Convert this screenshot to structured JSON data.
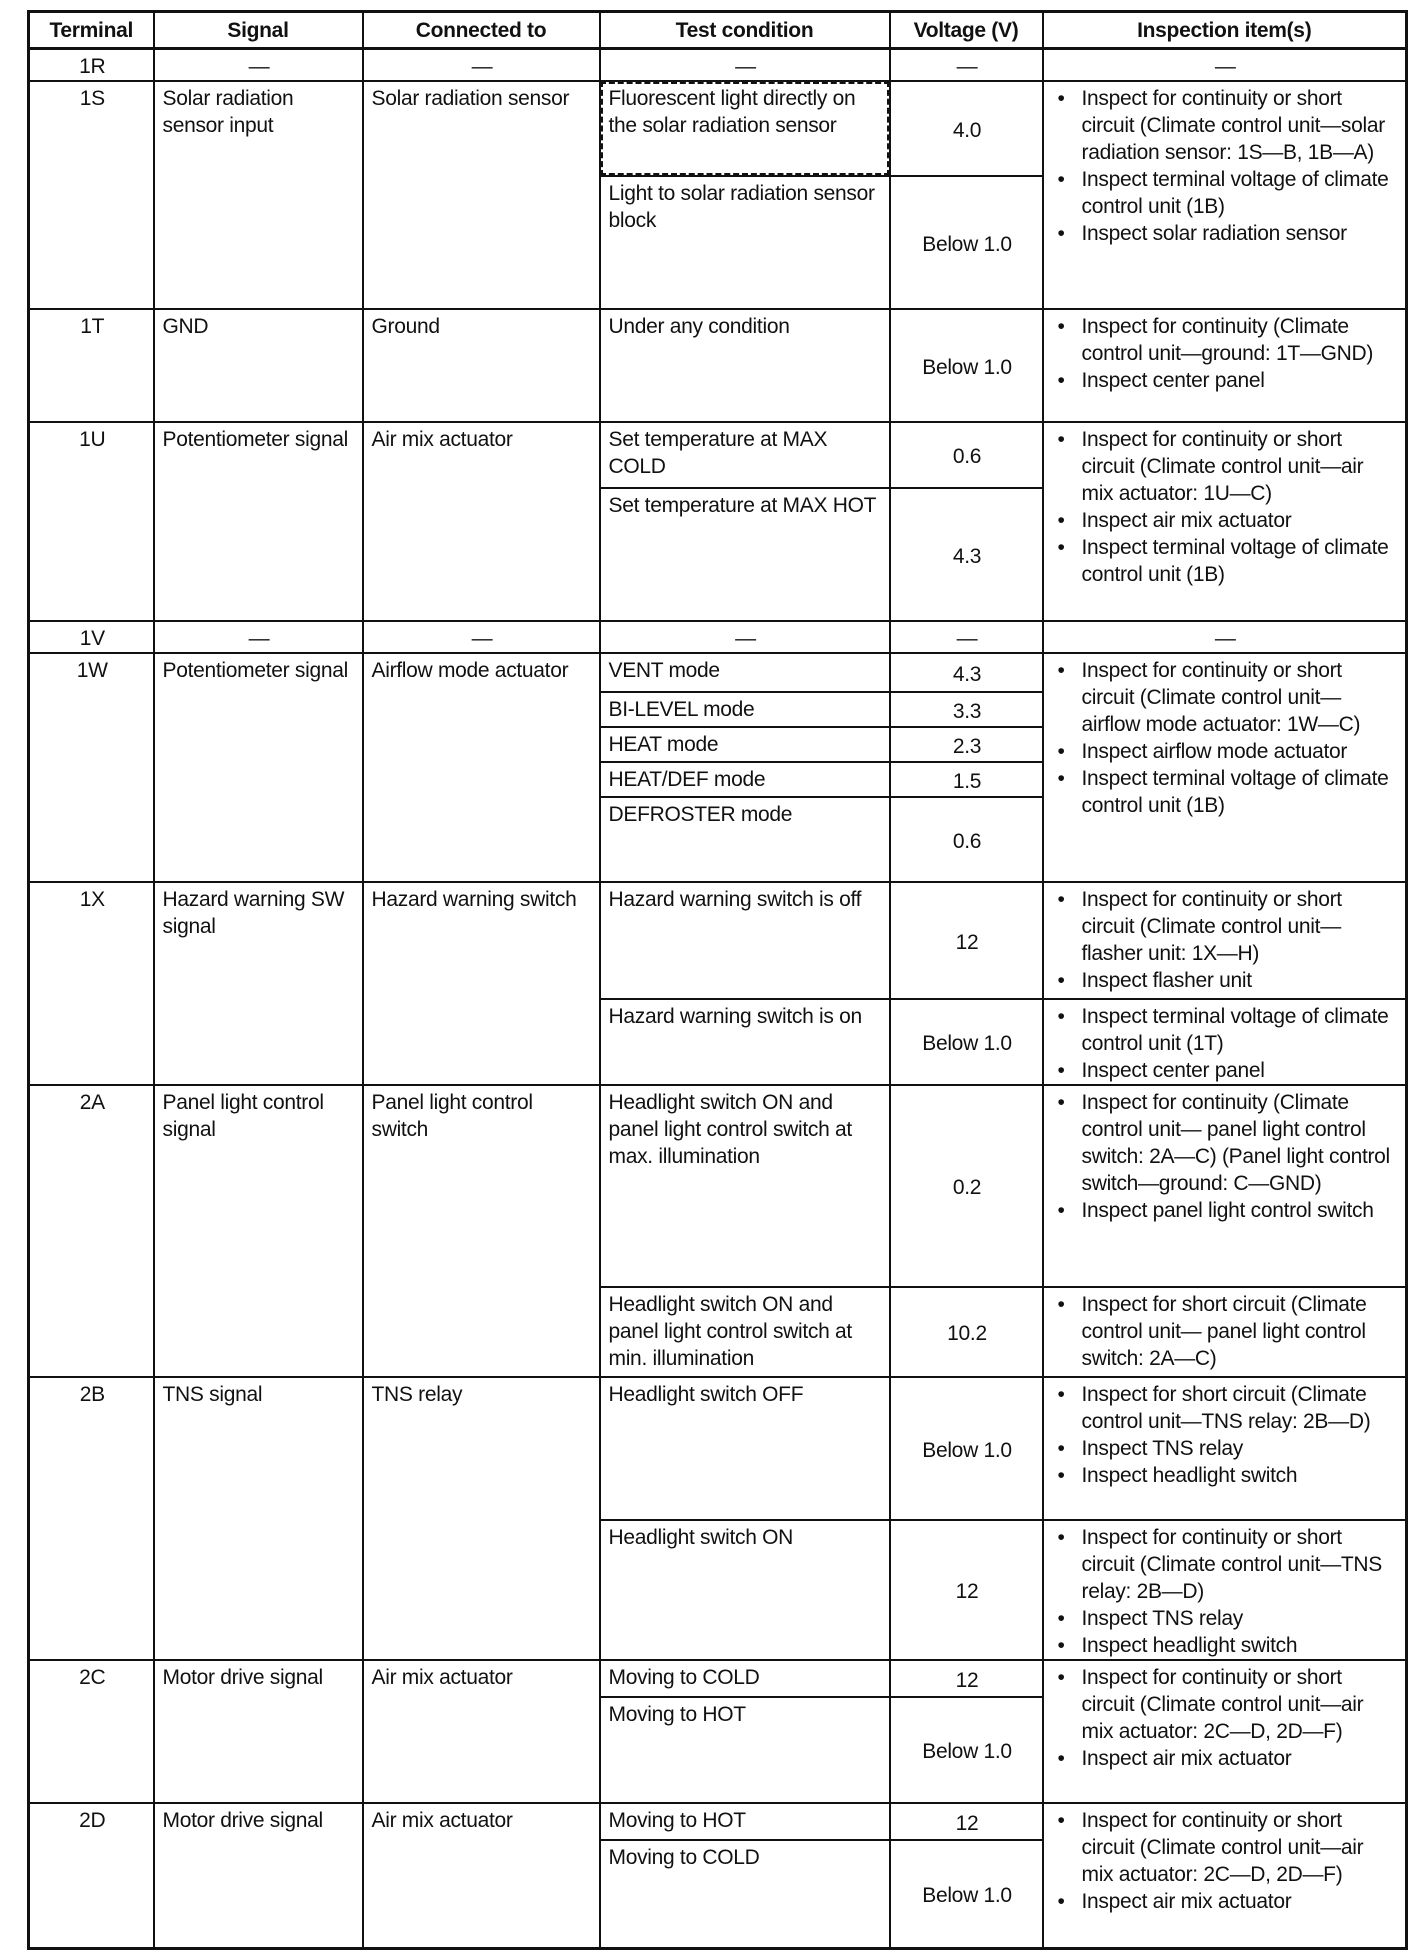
{
  "header": [
    "Terminal",
    "Signal",
    "Connected to",
    "Test condition",
    "Voltage (V)",
    "Inspection item(s)"
  ],
  "rows": [
    {
      "terminal": "1R",
      "signal": "—",
      "connected": "—",
      "conditions": [
        {
          "condition": "—",
          "voltage": "—"
        }
      ],
      "inspections": [
        {
          "plain": "—",
          "covers_conditions": 1
        }
      ]
    },
    {
      "terminal": "1S",
      "signal": "Solar radiation sensor input",
      "connected": "Solar radiation sensor",
      "conditions": [
        {
          "condition": "Fluorescent light directly on the solar radiation sensor",
          "voltage": "4.0",
          "highlighted": true
        },
        {
          "condition": "Light to solar radiation sensor block",
          "voltage": "Below 1.0"
        }
      ],
      "inspections": [
        {
          "covers_conditions": 2,
          "items": [
            "Inspect for continuity or short circuit (Climate control unit—solar radiation sensor: 1S—B, 1B—A)",
            "Inspect terminal voltage of climate control unit (1B)",
            "Inspect solar radiation sensor"
          ]
        }
      ]
    },
    {
      "terminal": "1T",
      "signal": "GND",
      "connected": "Ground",
      "conditions": [
        {
          "condition": "Under any condition",
          "voltage": "Below 1.0"
        }
      ],
      "inspections": [
        {
          "covers_conditions": 1,
          "items": [
            "Inspect for continuity (Climate control unit—ground: 1T—GND)",
            "Inspect center panel"
          ]
        }
      ]
    },
    {
      "terminal": "1U",
      "signal": "Potentiometer signal",
      "connected": "Air mix actuator",
      "conditions": [
        {
          "condition": "Set temperature at MAX COLD",
          "voltage": "0.6"
        },
        {
          "condition": "Set temperature at MAX HOT",
          "voltage": "4.3"
        }
      ],
      "inspections": [
        {
          "covers_conditions": 2,
          "items": [
            "Inspect for continuity or short circuit (Climate control unit—air mix actuator: 1U—C)",
            "Inspect air mix actuator",
            "Inspect terminal voltage of climate control unit (1B)"
          ]
        }
      ]
    },
    {
      "terminal": "1V",
      "signal": "—",
      "connected": "—",
      "conditions": [
        {
          "condition": "—",
          "voltage": "—"
        }
      ],
      "inspections": [
        {
          "plain": "—",
          "covers_conditions": 1
        }
      ]
    },
    {
      "terminal": "1W",
      "signal": "Potentiometer signal",
      "connected": "Airflow mode actuator",
      "conditions": [
        {
          "condition": "VENT mode",
          "voltage": "4.3"
        },
        {
          "condition": "BI-LEVEL mode",
          "voltage": "3.3"
        },
        {
          "condition": "HEAT mode",
          "voltage": "2.3"
        },
        {
          "condition": "HEAT/DEF mode",
          "voltage": "1.5"
        },
        {
          "condition": "DEFROSTER mode",
          "voltage": "0.6"
        }
      ],
      "inspections": [
        {
          "covers_conditions": 5,
          "items": [
            "Inspect for continuity or short circuit (Climate control unit—airflow mode actuator: 1W—C)",
            "Inspect airflow mode actuator",
            "Inspect terminal voltage of climate control unit (1B)"
          ]
        }
      ]
    },
    {
      "terminal": "1X",
      "signal": "Hazard warning SW signal",
      "connected": "Hazard warning switch",
      "conditions": [
        {
          "condition": "Hazard warning switch is off",
          "voltage": "12"
        },
        {
          "condition": "Hazard warning switch is on",
          "voltage": "Below 1.0"
        }
      ],
      "inspections": [
        {
          "covers_conditions": 1,
          "items": [
            "Inspect for continuity or short circuit (Climate control unit—flasher unit: 1X—H)",
            "Inspect flasher unit"
          ]
        },
        {
          "covers_conditions": 1,
          "items": [
            "Inspect terminal voltage of climate control unit (1T)",
            "Inspect center panel"
          ]
        }
      ]
    },
    {
      "terminal": "2A",
      "signal": "Panel light control signal",
      "connected": "Panel light control switch",
      "conditions": [
        {
          "condition": "Headlight switch ON and panel light control switch at max. illumination",
          "voltage": "0.2"
        },
        {
          "condition": "Headlight switch ON and panel light control switch at min. illumination",
          "voltage": "10.2"
        }
      ],
      "inspections": [
        {
          "covers_conditions": 1,
          "items": [
            "Inspect for continuity (Climate control unit— panel light control switch: 2A—C) (Panel light control switch—ground: C—GND)",
            "Inspect panel light control switch"
          ]
        },
        {
          "covers_conditions": 1,
          "items": [
            "Inspect for short circuit (Climate control unit— panel light control switch: 2A—C)"
          ]
        }
      ]
    },
    {
      "terminal": "2B",
      "signal": "TNS signal",
      "connected": "TNS relay",
      "conditions": [
        {
          "condition": "Headlight switch OFF",
          "voltage": "Below 1.0"
        },
        {
          "condition": "Headlight switch ON",
          "voltage": "12"
        }
      ],
      "inspections": [
        {
          "covers_conditions": 1,
          "items": [
            "Inspect for short circuit (Climate control unit—TNS relay: 2B—D)",
            "Inspect TNS relay",
            "Inspect headlight switch"
          ]
        },
        {
          "covers_conditions": 1,
          "items": [
            "Inspect for continuity or short circuit (Climate control unit—TNS relay: 2B—D)",
            "Inspect TNS relay",
            "Inspect headlight switch"
          ]
        }
      ]
    },
    {
      "terminal": "2C",
      "signal": "Motor drive signal",
      "connected": "Air mix actuator",
      "conditions": [
        {
          "condition": "Moving to COLD",
          "voltage": "12"
        },
        {
          "condition": "Moving to HOT",
          "voltage": "Below 1.0"
        }
      ],
      "inspections": [
        {
          "covers_conditions": 2,
          "items": [
            "Inspect for continuity or short circuit (Climate control unit—air mix actuator: 2C—D, 2D—F)",
            "Inspect air mix actuator"
          ]
        }
      ]
    },
    {
      "terminal": "2D",
      "signal": "Motor drive signal",
      "connected": "Air mix actuator",
      "conditions": [
        {
          "condition": "Moving to HOT",
          "voltage": "12"
        },
        {
          "condition": "Moving to COLD",
          "voltage": "Below 1.0"
        }
      ],
      "inspections": [
        {
          "covers_conditions": 2,
          "items": [
            "Inspect for continuity or short circuit (Climate control unit—air mix actuator: 2C—D, 2D—F)",
            "Inspect air mix actuator"
          ]
        }
      ]
    }
  ],
  "bullet_glyph": "•"
}
